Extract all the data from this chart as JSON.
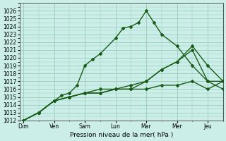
{
  "title": "",
  "xlabel": "Pression niveau de la mer( hPa )",
  "x_labels": [
    "Dim",
    "Ven",
    "Sam",
    "Lun",
    "Mar",
    "Mer",
    "Jeu"
  ],
  "x_tick_positions": [
    0,
    4,
    8,
    12,
    16,
    20,
    24
  ],
  "ylim": [
    1012,
    1027
  ],
  "yticks": [
    1012,
    1013,
    1014,
    1015,
    1016,
    1017,
    1018,
    1019,
    1020,
    1021,
    1022,
    1023,
    1024,
    1025,
    1026
  ],
  "xlim": [
    -0.5,
    26
  ],
  "background_color": "#cceee8",
  "grid_color": "#99ccbb",
  "line_color": "#1a5c1a",
  "series": [
    {
      "x": [
        0,
        2,
        4,
        5,
        6,
        7,
        8,
        9,
        10,
        12,
        13,
        14,
        15,
        16,
        17,
        18,
        20,
        22,
        24,
        26
      ],
      "y": [
        1012,
        1013,
        1014.5,
        1015.2,
        1015.5,
        1016.5,
        1019.0,
        1019.8,
        1020.5,
        1022.5,
        1023.8,
        1024.0,
        1024.5,
        1026.0,
        1024.5,
        1023.0,
        1021.5,
        1019.0,
        1017.0,
        1017.0
      ]
    },
    {
      "x": [
        0,
        2,
        4,
        6,
        8,
        10,
        12,
        14,
        16,
        18,
        20,
        22,
        24,
        26
      ],
      "y": [
        1012,
        1013,
        1014.5,
        1015.0,
        1015.5,
        1015.5,
        1016.0,
        1016.0,
        1016.0,
        1016.5,
        1016.5,
        1017.0,
        1016.0,
        1017.0
      ]
    },
    {
      "x": [
        0,
        2,
        4,
        6,
        8,
        10,
        12,
        14,
        16,
        18,
        20,
        22,
        24,
        26
      ],
      "y": [
        1012,
        1013,
        1014.5,
        1015.0,
        1015.5,
        1015.5,
        1016.0,
        1016.5,
        1017.0,
        1018.5,
        1019.5,
        1021.5,
        1019.0,
        1017.0
      ]
    },
    {
      "x": [
        0,
        2,
        4,
        6,
        8,
        10,
        12,
        14,
        16,
        18,
        20,
        22,
        24,
        26
      ],
      "y": [
        1012,
        1013,
        1014.5,
        1015.0,
        1015.5,
        1016.0,
        1016.0,
        1016.0,
        1017.0,
        1018.5,
        1019.5,
        1021.0,
        1017.0,
        1016.0
      ]
    }
  ],
  "marker": "D",
  "marker_size": 2.0,
  "line_width": 1.0
}
